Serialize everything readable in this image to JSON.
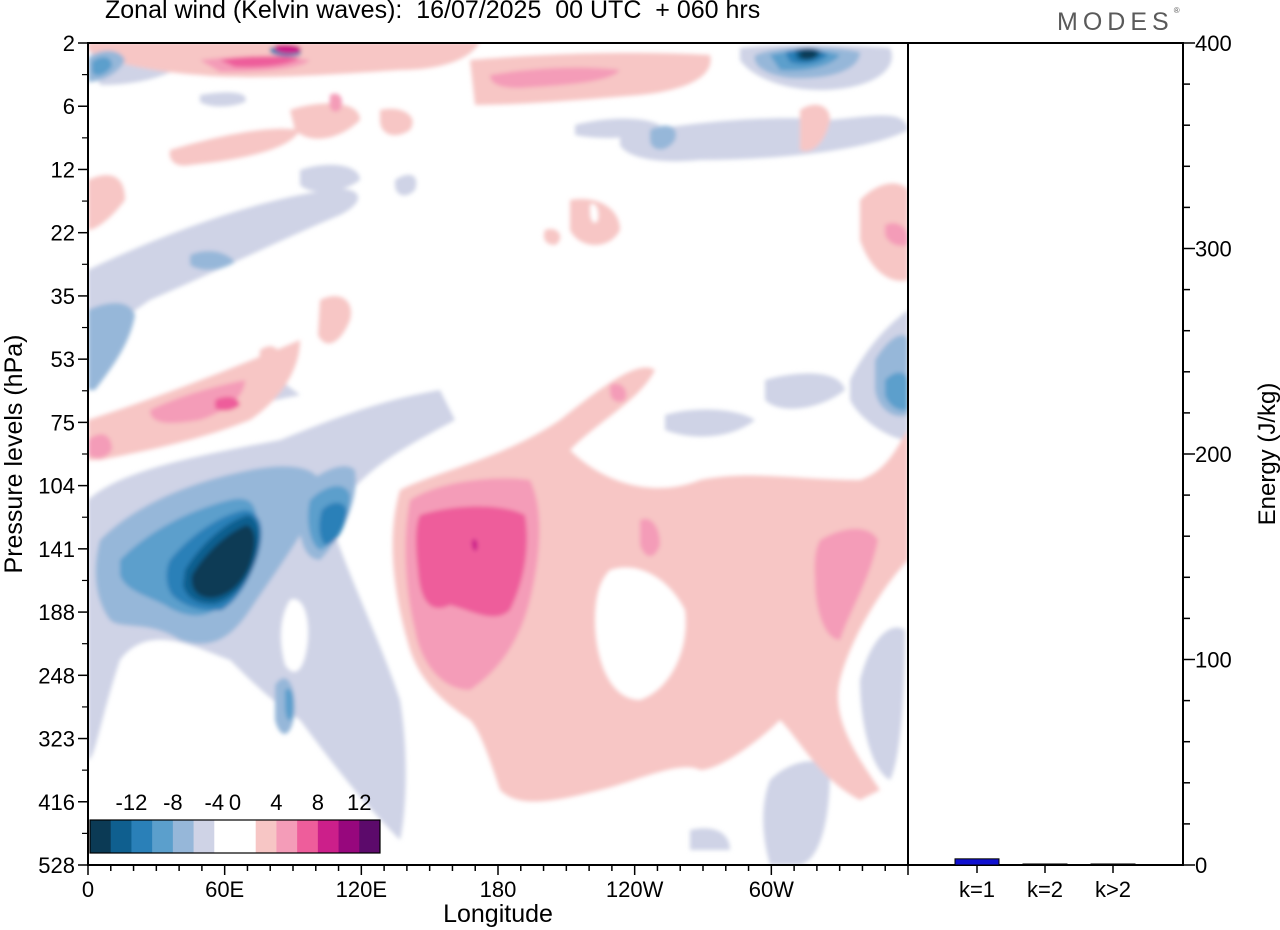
{
  "title": "Zonal wind (Kelvin waves):  16/07/2025  00 UTC  + 060 hrs",
  "logo": "MODES",
  "logo_mark": "®",
  "colors": {
    "neg": [
      "#0b3a55",
      "#0f5f8f",
      "#2a80b8",
      "#5b9fcc",
      "#96b7d9",
      "#cfd3e6"
    ],
    "pos": [
      "#f7c6c5",
      "#f49cb8",
      "#ee5d9b",
      "#cc1f8a",
      "#97077d",
      "#5c0a6b"
    ],
    "energy_bar": "#1010d0"
  },
  "chart_data": [
    {
      "type": "heatmap",
      "xlabel": "Longitude",
      "ylabel": "Pressure levels (hPa)",
      "x_ticks": [
        "0",
        "60E",
        "120E",
        "180",
        "120W",
        "60W"
      ],
      "y_ticks": [
        "2",
        "6",
        "12",
        "22",
        "35",
        "53",
        "75",
        "104",
        "141",
        "188",
        "248",
        "323",
        "416",
        "528"
      ],
      "colorbar": {
        "tick_labels": [
          "-12",
          "-8",
          "-4",
          "0",
          "4",
          "8",
          "12"
        ],
        "levels": [
          -14,
          -12,
          -10,
          -8,
          -6,
          -4,
          -2,
          2,
          4,
          6,
          8,
          10,
          12,
          14
        ]
      }
    },
    {
      "type": "bar",
      "ylabel": "Energy (J/kg)",
      "categories": [
        "k=1",
        "k=2",
        "k>2"
      ],
      "values": [
        3,
        0.5,
        0.5
      ],
      "ylim": [
        0,
        400
      ],
      "y_ticks": [
        "0",
        "100",
        "200",
        "300",
        "400"
      ]
    }
  ]
}
